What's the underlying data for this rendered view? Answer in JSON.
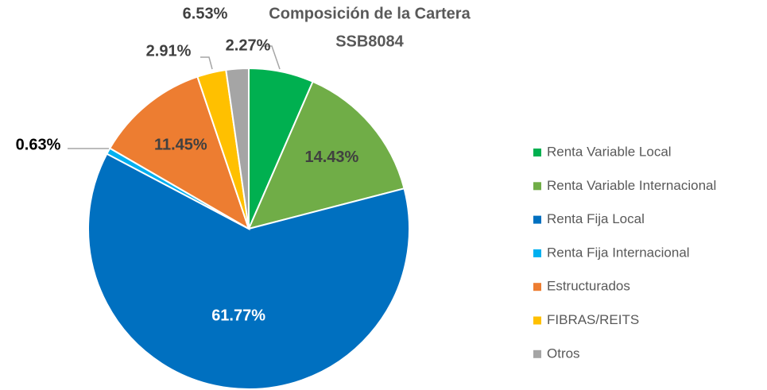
{
  "chart_data": {
    "type": "pie",
    "title": "Composición de la Cartera",
    "subtitle": "SSB8084",
    "categories": [
      "Renta Variable Local",
      "Renta Variable Internacional",
      "Renta Fija Local",
      "Renta Fija Internacional",
      "Estructurados",
      "FIBRAS/REITS",
      "Otros"
    ],
    "values": [
      6.53,
      14.43,
      61.77,
      0.63,
      11.45,
      2.91,
      2.27
    ],
    "value_labels": [
      "6.53%",
      "14.43%",
      "61.77%",
      "0.63%",
      "11.45%",
      "2.91%",
      "2.27%"
    ],
    "colors": [
      "#00b050",
      "#70ad47",
      "#0070c0",
      "#00b0f0",
      "#ed7d31",
      "#ffc000",
      "#a5a5a5"
    ]
  }
}
